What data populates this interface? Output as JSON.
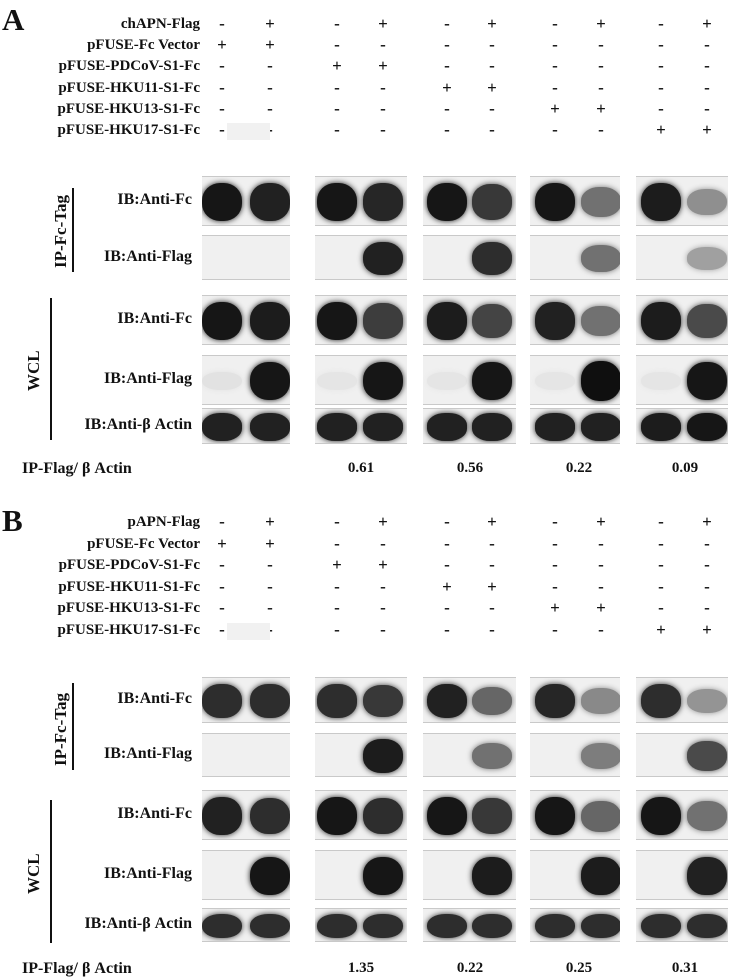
{
  "panels": [
    {
      "letter": "A",
      "rows": [
        {
          "label": "chAPN-Flag",
          "signs": [
            "-",
            "+",
            "-",
            "+",
            "-",
            "+",
            "-",
            "+",
            "-",
            "+"
          ]
        },
        {
          "label": "pFUSE-Fc Vector",
          "signs": [
            "+",
            "+",
            "-",
            "-",
            "-",
            "-",
            "-",
            "-",
            "-",
            "-"
          ]
        },
        {
          "label": "pFUSE-PDCoV-S1-Fc",
          "signs": [
            "-",
            "-",
            "+",
            "+",
            "-",
            "-",
            "-",
            "-",
            "-",
            "-"
          ]
        },
        {
          "label": "pFUSE-HKU11-S1-Fc",
          "signs": [
            "-",
            "-",
            "-",
            "-",
            "+",
            "+",
            "-",
            "-",
            "-",
            "-"
          ]
        },
        {
          "label": "pFUSE-HKU13-S1-Fc",
          "signs": [
            "-",
            "-",
            "-",
            "-",
            "-",
            "-",
            "+",
            "+",
            "-",
            "-"
          ]
        },
        {
          "label": "pFUSE-HKU17-S1-Fc",
          "signs": [
            "-",
            "-",
            "-",
            "-",
            "-",
            "-",
            "-",
            "-",
            "+",
            "+"
          ]
        }
      ],
      "group_ip": "IP-Fc-Tag",
      "group_wcl": "WCL",
      "blots": [
        {
          "label": "IB:Anti-Fc",
          "lanes": [
            0.95,
            0.9,
            0.95,
            0.88,
            0.95,
            0.8,
            0.95,
            0.55,
            0.92,
            0.42
          ]
        },
        {
          "label": "IB:Anti-Flag",
          "lanes": [
            0,
            0,
            0,
            0.9,
            0,
            0.85,
            0,
            0.55,
            0,
            0.35
          ]
        },
        {
          "label": "IB:Anti-Fc",
          "lanes": [
            0.95,
            0.92,
            0.95,
            0.78,
            0.92,
            0.75,
            0.9,
            0.55,
            0.92,
            0.72
          ]
        },
        {
          "label": "IB:Anti-Flag",
          "lanes": [
            0.06,
            0.95,
            0.05,
            0.95,
            0.05,
            0.95,
            0.05,
            0.98,
            0.05,
            0.95
          ]
        },
        {
          "label": "IB:Anti-β Actin",
          "lanes": [
            0.9,
            0.9,
            0.9,
            0.9,
            0.9,
            0.9,
            0.9,
            0.9,
            0.92,
            0.95
          ]
        }
      ],
      "ratio_label": "IP-Flag/ β Actin",
      "ratios": [
        "0.61",
        "0.56",
        "0.22",
        "0.09"
      ]
    },
    {
      "letter": "B",
      "rows": [
        {
          "label": "pAPN-Flag",
          "signs": [
            "-",
            "+",
            "-",
            "+",
            "-",
            "+",
            "-",
            "+",
            "-",
            "+"
          ]
        },
        {
          "label": "pFUSE-Fc Vector",
          "signs": [
            "+",
            "+",
            "-",
            "-",
            "-",
            "-",
            "-",
            "-",
            "-",
            "-"
          ]
        },
        {
          "label": "pFUSE-PDCoV-S1-Fc",
          "signs": [
            "-",
            "-",
            "+",
            "+",
            "-",
            "-",
            "-",
            "-",
            "-",
            "-"
          ]
        },
        {
          "label": "pFUSE-HKU11-S1-Fc",
          "signs": [
            "-",
            "-",
            "-",
            "-",
            "+",
            "+",
            "-",
            "-",
            "-",
            "-"
          ]
        },
        {
          "label": "pFUSE-HKU13-S1-Fc",
          "signs": [
            "-",
            "-",
            "-",
            "-",
            "-",
            "-",
            "+",
            "+",
            "-",
            "-"
          ]
        },
        {
          "label": "pFUSE-HKU17-S1-Fc",
          "signs": [
            "-",
            "-",
            "-",
            "-",
            "-",
            "-",
            "-",
            "-",
            "+",
            "+"
          ]
        }
      ],
      "group_ip": "IP-Fc-Tag",
      "group_wcl": "WCL",
      "blots": [
        {
          "label": "IB:Anti-Fc",
          "lanes": [
            0.85,
            0.85,
            0.85,
            0.8,
            0.9,
            0.6,
            0.88,
            0.45,
            0.85,
            0.4
          ]
        },
        {
          "label": "IB:Anti-Flag",
          "lanes": [
            0,
            0,
            0,
            0.92,
            0,
            0.55,
            0,
            0.5,
            0,
            0.72
          ]
        },
        {
          "label": "IB:Anti-Fc",
          "lanes": [
            0.9,
            0.85,
            0.95,
            0.85,
            0.95,
            0.8,
            0.95,
            0.6,
            0.95,
            0.55
          ]
        },
        {
          "label": "IB:Anti-Flag",
          "lanes": [
            0,
            0.95,
            0,
            0.95,
            0,
            0.92,
            0,
            0.92,
            0,
            0.9
          ]
        },
        {
          "label": "IB:Anti-β Actin",
          "lanes": [
            0.85,
            0.85,
            0.85,
            0.85,
            0.85,
            0.85,
            0.85,
            0.85,
            0.85,
            0.85
          ]
        }
      ],
      "ratio_label": "IP-Flag/ β Actin",
      "ratios": [
        "1.35",
        "0.22",
        "0.25",
        "0.31"
      ]
    }
  ]
}
